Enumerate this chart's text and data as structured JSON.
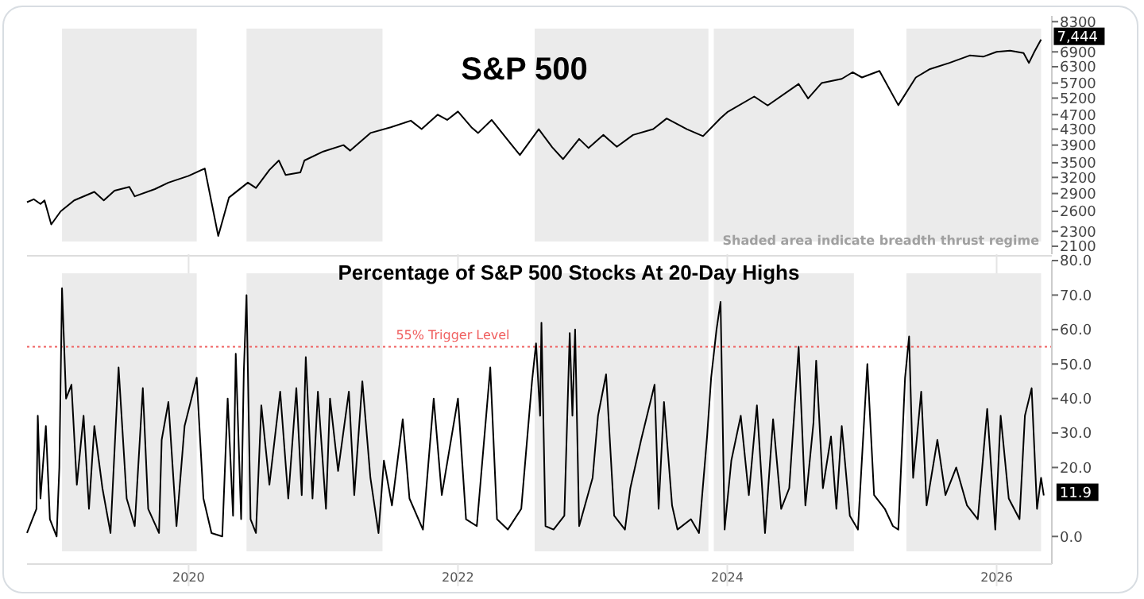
{
  "chart_data": [
    {
      "type": "line",
      "title": "S&P 500",
      "log": true,
      "xlim": [
        2018.8,
        2026.41
      ],
      "xticks": [
        2020,
        2022,
        2024,
        2026
      ],
      "ylim": [
        2000,
        8600
      ],
      "yticks": [
        2100,
        2300,
        2600,
        2900,
        3200,
        3500,
        3900,
        4300,
        4700,
        5200,
        5700,
        6300,
        6900,
        8300
      ],
      "tick_labels": "y",
      "bands": [
        {
          "axis": "x",
          "from": 2019.06,
          "to": 2020.06,
          "color": "#ebebeb"
        },
        {
          "axis": "x",
          "from": 2020.43,
          "to": 2021.44,
          "color": "#ebebeb"
        },
        {
          "axis": "x",
          "from": 2022.57,
          "to": 2023.86,
          "color": "#ebebeb"
        },
        {
          "axis": "x",
          "from": 2023.9,
          "to": 2024.94,
          "color": "#ebebeb"
        },
        {
          "axis": "x",
          "from": 2025.33,
          "to": 2026.33,
          "color": "#ebebeb"
        }
      ],
      "annotations": [
        "Shaded area indicate breadth thrust regime",
        {
          "text": "7,444",
          "x": 2026.33,
          "y": 7444
        }
      ],
      "series": [
        {
          "color": "#000000",
          "x": [
            2018.8,
            2018.85,
            2018.9,
            2018.93,
            2018.98,
            2019.05,
            2019.15,
            2019.3,
            2019.37,
            2019.45,
            2019.56,
            2019.6,
            2019.75,
            2019.85,
            2020.0,
            2020.12,
            2020.22,
            2020.3,
            2020.44,
            2020.5,
            2020.6,
            2020.67,
            2020.72,
            2020.83,
            2020.86,
            2021.0,
            2021.15,
            2021.2,
            2021.35,
            2021.5,
            2021.65,
            2021.73,
            2021.85,
            2021.92,
            2022.0,
            2022.1,
            2022.15,
            2022.25,
            2022.4,
            2022.46,
            2022.6,
            2022.7,
            2022.78,
            2022.9,
            2022.97,
            2023.08,
            2023.18,
            2023.3,
            2023.45,
            2023.55,
            2023.7,
            2023.82,
            2023.95,
            2024.0,
            2024.2,
            2024.3,
            2024.53,
            2024.6,
            2024.7,
            2024.85,
            2024.93,
            2025.0,
            2025.13,
            2025.27,
            2025.4,
            2025.5,
            2025.65,
            2025.8,
            2025.9,
            2026.0,
            2026.1,
            2026.2,
            2026.24,
            2026.28,
            2026.33
          ],
          "values": [
            2750,
            2800,
            2720,
            2780,
            2400,
            2600,
            2780,
            2930,
            2780,
            2950,
            3020,
            2850,
            2980,
            3100,
            3230,
            3380,
            2237,
            2830,
            3100,
            3000,
            3350,
            3550,
            3250,
            3300,
            3550,
            3750,
            3900,
            3770,
            4200,
            4350,
            4530,
            4300,
            4700,
            4550,
            4790,
            4350,
            4200,
            4550,
            3900,
            3670,
            4300,
            3850,
            3580,
            4050,
            3830,
            4150,
            3860,
            4150,
            4300,
            4590,
            4300,
            4120,
            4600,
            4770,
            5250,
            4970,
            5670,
            5190,
            5700,
            5850,
            6090,
            5900,
            6140,
            4980,
            5900,
            6200,
            6450,
            6750,
            6700,
            6900,
            6950,
            6850,
            6450,
            6900,
            7444
          ]
        }
      ]
    },
    {
      "type": "line",
      "title": "Percentage of S&P 500 Stocks At 20-Day Highs",
      "xlim": [
        2018.8,
        2026.41
      ],
      "xticks": [
        2020,
        2022,
        2024,
        2026
      ],
      "ylim": [
        -8,
        80
      ],
      "yticks": [
        {
          "value": 80,
          "label": "80.0"
        },
        {
          "value": 70,
          "label": "70.0"
        },
        {
          "value": 60,
          "label": "60.0"
        },
        {
          "value": 50,
          "label": "50.0"
        },
        {
          "value": 40,
          "label": "40.0"
        },
        {
          "value": 30,
          "label": "30.0"
        },
        {
          "value": 20,
          "label": "20.0"
        },
        {
          "value": 0,
          "label": "0.0"
        }
      ],
      "bands": [
        {
          "axis": "x",
          "from": 2019.06,
          "to": 2020.06,
          "color": "#ebebeb"
        },
        {
          "axis": "x",
          "from": 2020.43,
          "to": 2021.44,
          "color": "#ebebeb"
        },
        {
          "axis": "x",
          "from": 2022.57,
          "to": 2023.86,
          "color": "#ebebeb"
        },
        {
          "axis": "x",
          "from": 2023.9,
          "to": 2024.94,
          "color": "#ebebeb"
        },
        {
          "axis": "x",
          "from": 2025.33,
          "to": 2026.33,
          "color": "#ebebeb"
        }
      ],
      "ref_lines": [
        {
          "axis": "y",
          "value": 55,
          "label": "55% Trigger Level",
          "color": "#f06060",
          "line_style": "dotted"
        }
      ],
      "annotations": [
        {
          "text": "11.9",
          "x": 2026.35,
          "y": 11.9
        }
      ],
      "series": [
        {
          "color": "#000000",
          "x": [
            2018.8,
            2018.87,
            2018.88,
            2018.9,
            2018.94,
            2018.97,
            2019.02,
            2019.04,
            2019.06,
            2019.09,
            2019.13,
            2019.17,
            2019.22,
            2019.26,
            2019.3,
            2019.36,
            2019.42,
            2019.48,
            2019.54,
            2019.6,
            2019.66,
            2019.7,
            2019.78,
            2019.8,
            2019.85,
            2019.91,
            2019.97,
            2020.06,
            2020.11,
            2020.17,
            2020.25,
            2020.29,
            2020.33,
            2020.35,
            2020.39,
            2020.41,
            2020.43,
            2020.46,
            2020.5,
            2020.54,
            2020.6,
            2020.68,
            2020.74,
            2020.8,
            2020.84,
            2020.87,
            2020.92,
            2020.96,
            2021.02,
            2021.05,
            2021.11,
            2021.19,
            2021.23,
            2021.29,
            2021.35,
            2021.41,
            2021.45,
            2021.51,
            2021.59,
            2021.64,
            2021.74,
            2021.82,
            2021.88,
            2022.0,
            2022.06,
            2022.14,
            2022.24,
            2022.29,
            2022.37,
            2022.47,
            2022.55,
            2022.58,
            2022.61,
            2022.62,
            2022.65,
            2022.71,
            2022.79,
            2022.83,
            2022.85,
            2022.87,
            2022.9,
            2023.0,
            2023.04,
            2023.1,
            2023.16,
            2023.24,
            2023.28,
            2023.36,
            2023.46,
            2023.49,
            2023.53,
            2023.59,
            2023.63,
            2023.73,
            2023.79,
            2023.85,
            2023.88,
            2023.92,
            2023.95,
            2023.98,
            2024.03,
            2024.1,
            2024.16,
            2024.22,
            2024.28,
            2024.34,
            2024.4,
            2024.46,
            2024.53,
            2024.58,
            2024.64,
            2024.66,
            2024.71,
            2024.77,
            2024.81,
            2024.85,
            2024.91,
            2024.97,
            2025.04,
            2025.09,
            2025.17,
            2025.23,
            2025.27,
            2025.32,
            2025.35,
            2025.38,
            2025.44,
            2025.48,
            2025.56,
            2025.62,
            2025.7,
            2025.78,
            2025.86,
            2025.93,
            2025.99,
            2026.03,
            2026.09,
            2026.17,
            2026.21,
            2026.26,
            2026.3,
            2026.33,
            2026.35
          ],
          "values": [
            1,
            8,
            35,
            11,
            32,
            5,
            0,
            20,
            72,
            40,
            44,
            15,
            35,
            8,
            32,
            14,
            1,
            49,
            11,
            3,
            43,
            8,
            1,
            28,
            39,
            3,
            32,
            46,
            11,
            1,
            0,
            40,
            6,
            53,
            5,
            48,
            70,
            5,
            1,
            38,
            15,
            42,
            11,
            43,
            12,
            52,
            11,
            42,
            8,
            40,
            19,
            42,
            12,
            45,
            17,
            1,
            22,
            9,
            34,
            11,
            2,
            40,
            12,
            40,
            5,
            3,
            49,
            5,
            2,
            8,
            45,
            56,
            35,
            62,
            3,
            2,
            6,
            59,
            35,
            60,
            3,
            17,
            35,
            47,
            6,
            2,
            14,
            28,
            44,
            8,
            39,
            9,
            2,
            5,
            1,
            29,
            46,
            60,
            68,
            2,
            22,
            35,
            12,
            38,
            1,
            34,
            8,
            14,
            55,
            9,
            33,
            51,
            14,
            29,
            8,
            32,
            6,
            2,
            50,
            12,
            8,
            3,
            2,
            46,
            58,
            17,
            42,
            9,
            28,
            12,
            20,
            9,
            5,
            37,
            2,
            35,
            11,
            5,
            35,
            43,
            8,
            17,
            11.9
          ]
        }
      ]
    }
  ]
}
